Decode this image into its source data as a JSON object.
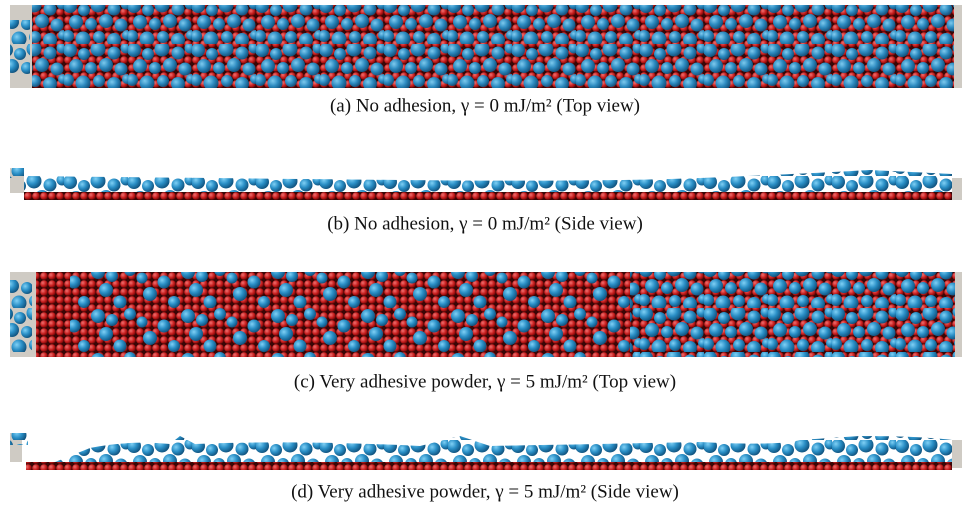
{
  "figure": {
    "captions": [
      "(a) No adhesion, γ = 0 mJ/m² (Top view)",
      "(b) No adhesion, γ = 0 mJ/m² (Side view)",
      "(c) Very adhesive powder, γ = 5 mJ/m² (Top view)",
      "(d) Very adhesive powder, γ = 5 mJ/m² (Side view)"
    ]
  }
}
